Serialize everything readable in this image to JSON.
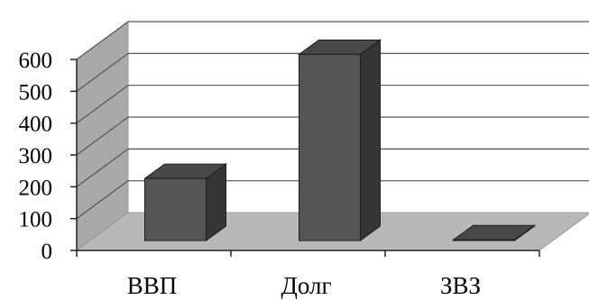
{
  "chart_data": {
    "type": "bar",
    "categories": [
      "ВВП",
      "Долг",
      "ЗВЗ"
    ],
    "values": [
      195,
      585,
      2
    ],
    "ylim": [
      0,
      600
    ],
    "y_ticks": [
      0,
      100,
      200,
      300,
      400,
      500,
      600
    ],
    "y_tick_labels": [
      "0",
      "100",
      "200",
      "300",
      "400",
      "500",
      "600"
    ],
    "grid": true,
    "legend": "none",
    "three_d": true,
    "colors": {
      "bar_front": "#555555",
      "bar_side": "#363636",
      "bar_top": "#484848",
      "floor": "#b8b8b8",
      "back_wall": "#ffffff",
      "side_wall": "#a9a9a9",
      "grid": "#555555"
    }
  }
}
